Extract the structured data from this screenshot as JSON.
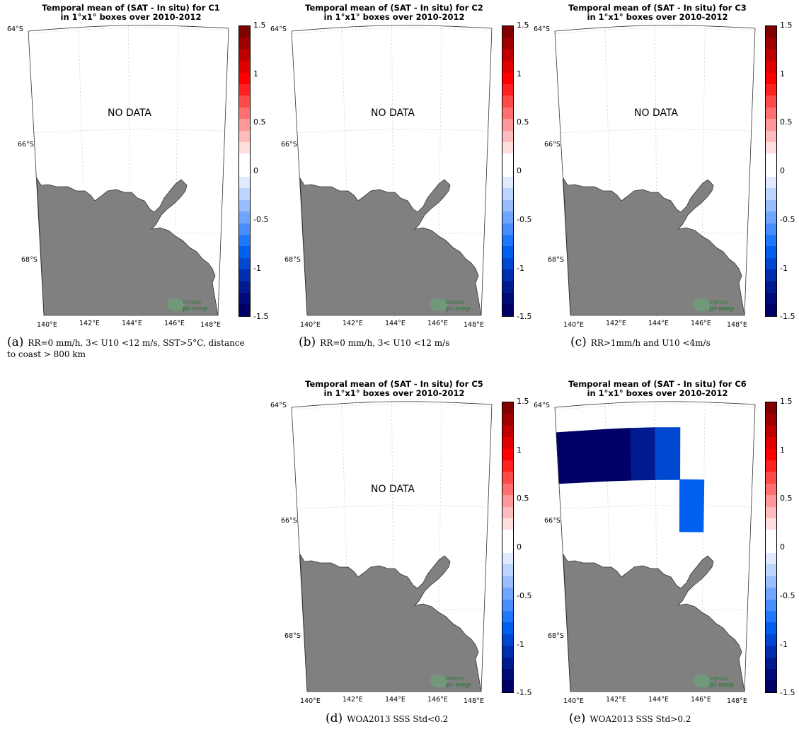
{
  "title_line1_template": "Temporal mean of (SAT - In situ) for",
  "common_title_line2": "in 1°x1° boxes over 2010-2012",
  "no_data_label": "NO DATA",
  "watermark": [
    "smos",
    "pi-mep"
  ],
  "colorbar": {
    "ticks": [
      "1.5",
      "1",
      "0.5",
      "0",
      "-0.5",
      "-1",
      "-1.5"
    ],
    "colors": [
      "#800000",
      "#a00000",
      "#c00000",
      "#e00000",
      "#ff0000",
      "#ff2020",
      "#ff4a4a",
      "#ff7070",
      "#ff9898",
      "#ffbcbc",
      "#ffdede",
      "#ffffff",
      "#ffffff",
      "#dfeaff",
      "#bcd4ff",
      "#98beff",
      "#70a6ff",
      "#4a8fff",
      "#2078ff",
      "#0060f0",
      "#0048d0",
      "#0030b0",
      "#001a90",
      "#000a78",
      "#000066"
    ]
  },
  "lat_labels": [
    "64°S",
    "66°S",
    "68°S"
  ],
  "lon_labels": [
    "140°E",
    "142°E",
    "144°E",
    "146°E",
    "148°E"
  ],
  "chart_data": [
    {
      "type": "heatmap",
      "panel": "a",
      "title_line1": "Temporal mean of (SAT - In situ) for C1",
      "title_line2": "in 1°x1° boxes over 2010-2012",
      "no_data": true,
      "cells": [],
      "clim": [
        -1.5,
        1.5
      ],
      "caption_label": "(a)",
      "caption_text": "RR=0 mm/h, 3< U10 <12 m/s, SST>5°C, distance to coast > 800 km"
    },
    {
      "type": "heatmap",
      "panel": "b",
      "title_line1": "Temporal mean of (SAT - In situ) for C2",
      "title_line2": "in 1°x1° boxes over 2010-2012",
      "no_data": true,
      "cells": [],
      "clim": [
        -1.5,
        1.5
      ],
      "caption_label": "(b)",
      "caption_text": "RR=0 mm/h, 3< U10 <12 m/s"
    },
    {
      "type": "heatmap",
      "panel": "c",
      "title_line1": "Temporal mean of (SAT - In situ) for C3",
      "title_line2": "in 1°x1° boxes over 2010-2012",
      "no_data": true,
      "cells": [],
      "clim": [
        -1.5,
        1.5
      ],
      "caption_label": "(c)",
      "caption_text": "RR>1mm/h and U10 <4m/s"
    },
    {
      "type": "heatmap",
      "panel": "d",
      "title_line1": "Temporal mean of (SAT - In situ) for C5",
      "title_line2": "in 1°x1° boxes over 2010-2012",
      "no_data": true,
      "cells": [],
      "clim": [
        -1.5,
        1.5
      ],
      "caption_label": "(d)",
      "caption_text": "WOA2013 SSS Std<0.2"
    },
    {
      "type": "heatmap",
      "panel": "e",
      "title_line1": "Temporal mean of (SAT - In situ) for C6",
      "title_line2": "in 1°x1° boxes over 2010-2012",
      "no_data": false,
      "clim": [
        -1.5,
        1.5
      ],
      "caption_label": "(e)",
      "caption_text": "WOA2013 SSS Std>0.2",
      "cells": [
        {
          "lon": [
            140,
            142
          ],
          "lat": [
            64.5,
            65.5
          ],
          "value": -1.5
        },
        {
          "lon": [
            142,
            143
          ],
          "lat": [
            64.5,
            65.5
          ],
          "value": -1.5
        },
        {
          "lon": [
            143,
            144
          ],
          "lat": [
            64.5,
            65.5
          ],
          "value": -1.3
        },
        {
          "lon": [
            144,
            145
          ],
          "lat": [
            64.5,
            65.5
          ],
          "value": -1.0
        },
        {
          "lon": [
            145,
            146
          ],
          "lat": [
            65.5,
            66.5
          ],
          "value": -0.9
        }
      ]
    }
  ]
}
